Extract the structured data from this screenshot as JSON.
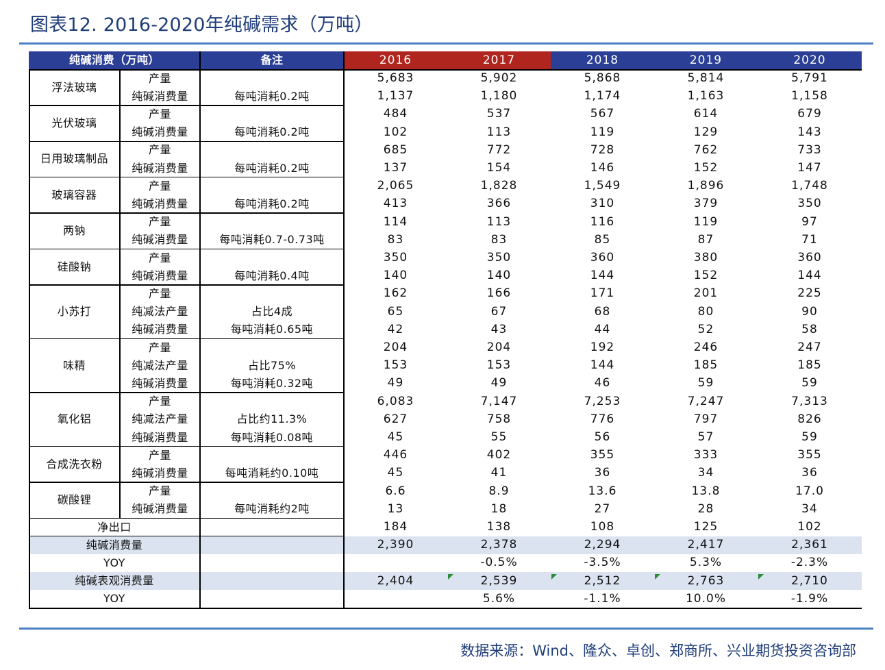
{
  "title": "图表12. 2016-2020年纯碱需求（万吨）",
  "source": "数据来源：Wind、隆众、卓创、郑商所、兴业期货投资咨询部",
  "colors": {
    "accent_line": "#4a7fc1",
    "header_navy": "#2a3f95",
    "header_red": "#b0251d",
    "summary_fill": "#dbe3f1",
    "title_text": "#1f3d7a",
    "marker_green": "#2e8b3a"
  },
  "table": {
    "headers": {
      "category": "纯碱消费（万吨）",
      "note": "备注",
      "years": [
        "2016",
        "2017",
        "2018",
        "2019",
        "2020"
      ]
    },
    "groups": [
      {
        "name": "浮法玻璃",
        "rows": [
          {
            "item": "产量",
            "note": "",
            "values": [
              "5,683",
              "5,902",
              "5,868",
              "5,814",
              "5,791"
            ]
          },
          {
            "item": "纯碱消费量",
            "note": "每吨消耗0.2吨",
            "values": [
              "1,137",
              "1,180",
              "1,174",
              "1,163",
              "1,158"
            ]
          }
        ]
      },
      {
        "name": "光伏玻璃",
        "rows": [
          {
            "item": "产量",
            "note": "",
            "values": [
              "484",
              "537",
              "567",
              "614",
              "679"
            ]
          },
          {
            "item": "纯碱消费量",
            "note": "每吨消耗0.2吨",
            "values": [
              "102",
              "113",
              "119",
              "129",
              "143"
            ]
          }
        ]
      },
      {
        "name": "日用玻璃制品",
        "rows": [
          {
            "item": "产量",
            "note": "",
            "values": [
              "685",
              "772",
              "728",
              "762",
              "733"
            ]
          },
          {
            "item": "纯碱消费量",
            "note": "每吨消耗0.2吨",
            "values": [
              "137",
              "154",
              "146",
              "152",
              "147"
            ]
          }
        ]
      },
      {
        "name": "玻璃容器",
        "rows": [
          {
            "item": "产量",
            "note": "",
            "values": [
              "2,065",
              "1,828",
              "1,549",
              "1,896",
              "1,748"
            ]
          },
          {
            "item": "纯碱消费量",
            "note": "每吨消耗0.2吨",
            "values": [
              "413",
              "366",
              "310",
              "379",
              "350"
            ]
          }
        ]
      },
      {
        "name": "两钠",
        "rows": [
          {
            "item": "产量",
            "note": "",
            "values": [
              "114",
              "113",
              "116",
              "119",
              "97"
            ]
          },
          {
            "item": "纯碱消费量",
            "note": "每吨消耗0.7-0.73吨",
            "values": [
              "83",
              "83",
              "85",
              "87",
              "71"
            ]
          }
        ]
      },
      {
        "name": "硅酸钠",
        "rows": [
          {
            "item": "产量",
            "note": "",
            "values": [
              "350",
              "350",
              "360",
              "380",
              "360"
            ]
          },
          {
            "item": "纯碱消费量",
            "note": "每吨消耗0.4吨",
            "values": [
              "140",
              "140",
              "144",
              "152",
              "144"
            ]
          }
        ]
      },
      {
        "name": "小苏打",
        "rows": [
          {
            "item": "产量",
            "note": "",
            "values": [
              "162",
              "166",
              "171",
              "201",
              "225"
            ]
          },
          {
            "item": "纯减法产量",
            "note": "占比4成",
            "values": [
              "65",
              "67",
              "68",
              "80",
              "90"
            ]
          },
          {
            "item": "纯碱消费量",
            "note": "每吨消耗0.65吨",
            "values": [
              "42",
              "43",
              "44",
              "52",
              "58"
            ]
          }
        ]
      },
      {
        "name": "味精",
        "rows": [
          {
            "item": "产量",
            "note": "",
            "values": [
              "204",
              "204",
              "192",
              "246",
              "247"
            ]
          },
          {
            "item": "纯减法产量",
            "note": "占比75%",
            "values": [
              "153",
              "153",
              "144",
              "185",
              "185"
            ]
          },
          {
            "item": "纯碱消费量",
            "note": "每吨消耗0.32吨",
            "values": [
              "49",
              "49",
              "46",
              "59",
              "59"
            ]
          }
        ]
      },
      {
        "name": "氧化铝",
        "rows": [
          {
            "item": "产量",
            "note": "",
            "values": [
              "6,083",
              "7,147",
              "7,253",
              "7,247",
              "7,313"
            ]
          },
          {
            "item": "纯减法产量",
            "note": "占比约11.3%",
            "values": [
              "627",
              "758",
              "776",
              "797",
              "826"
            ]
          },
          {
            "item": "纯碱消费量",
            "note": "每吨消耗0.08吨",
            "values": [
              "45",
              "55",
              "56",
              "57",
              "59"
            ]
          }
        ]
      },
      {
        "name": "合成洗衣粉",
        "rows": [
          {
            "item": "产量",
            "note": "",
            "values": [
              "446",
              "402",
              "355",
              "333",
              "355"
            ]
          },
          {
            "item": "纯碱消费量",
            "note": "每吨消耗约0.10吨",
            "values": [
              "45",
              "41",
              "36",
              "34",
              "36"
            ]
          }
        ]
      },
      {
        "name": "碳酸锂",
        "rows": [
          {
            "item": "产量",
            "note": "",
            "values": [
              "6.6",
              "8.9",
              "13.6",
              "13.8",
              "17.0"
            ]
          },
          {
            "item": "纯碱消费量",
            "note": "每吨消耗约2吨",
            "values": [
              "13",
              "18",
              "27",
              "28",
              "34"
            ]
          }
        ]
      }
    ],
    "summary": [
      {
        "label": "净出口",
        "note": "",
        "values": [
          "184",
          "138",
          "108",
          "125",
          "102"
        ],
        "highlight": false
      },
      {
        "label": "纯碱消费量",
        "note": "",
        "values": [
          "2,390",
          "2,378",
          "2,294",
          "2,417",
          "2,361"
        ],
        "highlight": true
      },
      {
        "label": "YOY",
        "note": "",
        "values": [
          "",
          "-0.5%",
          "-3.5%",
          "5.3%",
          "-2.3%"
        ],
        "highlight": false
      },
      {
        "label": "纯碱表观消费量",
        "note": "",
        "values": [
          "2,404",
          "2,539",
          "2,512",
          "2,763",
          "2,710"
        ],
        "highlight": true
      },
      {
        "label": "YOY",
        "note": "",
        "values": [
          "",
          "5.6%",
          "-1.1%",
          "10.0%",
          "-1.9%"
        ],
        "highlight": false
      }
    ]
  }
}
